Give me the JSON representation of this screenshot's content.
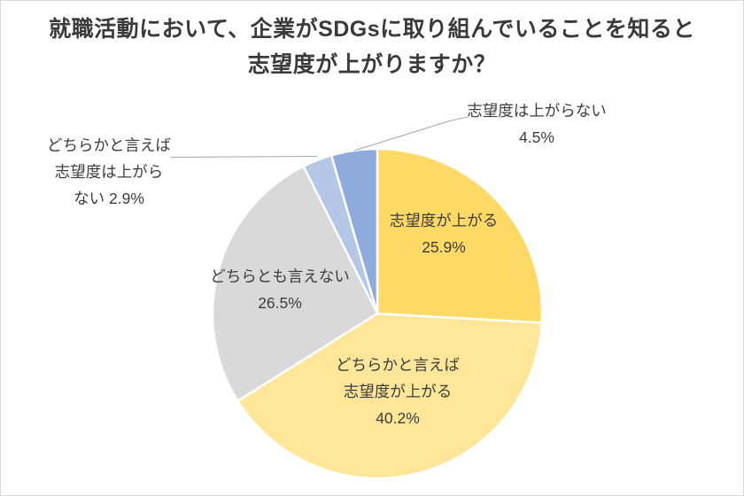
{
  "page": {
    "background_color": "#ffffff",
    "border_color": "#d9d9d9"
  },
  "title": {
    "text": "就職活動において、企業がSDGsに取り組んでいることを知ると志望度が上がりますか？",
    "lines": [
      "就職活動において、企業がSDGsに取り組んでいることを知ると",
      "志望度が上がりますか？"
    ],
    "color": "#3a3a3a"
  },
  "chart_data": {
    "type": "pie",
    "title": "就職活動において、企業がSDGsに取り組んでいることを知ると志望度が上がりますか？",
    "unit": "%",
    "direction": "clockwise",
    "start_angle_deg": 0,
    "total": 100,
    "slice_border_color": "#ffffff",
    "label_text_color": "#3d3d3d",
    "leader_line_color": "#a6a6a6",
    "slices": [
      {
        "label": "志望度が上がる",
        "value": 25.9,
        "pct_text": "25.9%",
        "color": "#FFD966",
        "label_placement": "inside",
        "label_lines": [
          "志望度が上がる",
          "25.9%"
        ]
      },
      {
        "label": "どちらかと言えば志望度が上がる",
        "value": 40.2,
        "pct_text": "40.2%",
        "color": "#FFE699",
        "label_placement": "inside",
        "label_lines": [
          "どちらかと言えば",
          "志望度が上がる",
          "40.2%"
        ]
      },
      {
        "label": "どちらとも言えない",
        "value": 26.5,
        "pct_text": "26.5%",
        "color": "#D9D9D9",
        "label_placement": "inside",
        "label_lines": [
          "どちらとも言えない",
          "26.5%"
        ]
      },
      {
        "label": "どちらかと言えば志望度は上がらない",
        "value": 2.9,
        "pct_text": "2.9%",
        "color": "#B4C7E7",
        "label_placement": "outside-left",
        "leader_line": true,
        "label_lines": [
          "どちらかと言えば",
          "志望度は上がら",
          "ない 2.9%"
        ]
      },
      {
        "label": "志望度は上がらない",
        "value": 4.5,
        "pct_text": "4.5%",
        "color": "#8FAADC",
        "label_placement": "outside-right",
        "leader_line": true,
        "label_lines": [
          "志望度は上がらない",
          "4.5%"
        ]
      }
    ]
  }
}
